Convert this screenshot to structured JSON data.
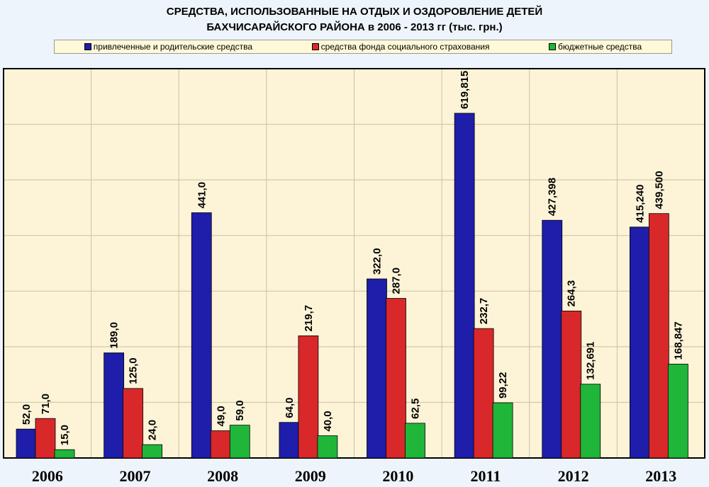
{
  "title_line1": "СРЕДСТВА, ИСПОЛЬЗОВАННЫЕ НА ОТДЫХ И ОЗДОРОВЛЕНИЕ ДЕТЕЙ",
  "title_line2": "БАХЧИСАРАЙСКОГО РАЙОНА в 2006 - 2013 гг (тыс. грн.)",
  "colors": {
    "blue": "#1e1eaa",
    "red": "#d8282a",
    "green": "#1fb63a",
    "plot_bg": "#fdf4d8",
    "grid": "#c9bfa5"
  },
  "chart_data": {
    "type": "bar",
    "categories": [
      "2006",
      "2007",
      "2008",
      "2009",
      "2010",
      "2011",
      "2012",
      "2013"
    ],
    "ylim": [
      0,
      700
    ],
    "grid": true,
    "legend_position": "top",
    "series": [
      {
        "name": "привлеченные и родительские средства",
        "color": "#1e1eaa",
        "values": [
          52.0,
          189.0,
          441.0,
          64.0,
          322.0,
          619.815,
          427.398,
          415.24
        ],
        "labels": [
          "52,0",
          "189,0",
          "441,0",
          "64,0",
          "322,0",
          "619,815",
          "427,398",
          "415,240"
        ]
      },
      {
        "name": "средства фонда социального страхования",
        "color": "#d8282a",
        "values": [
          71.0,
          125.0,
          49.0,
          219.7,
          287.0,
          232.7,
          264.3,
          439.5
        ],
        "labels": [
          "71,0",
          "125,0",
          "49,0",
          "219,7",
          "287,0",
          "232,7",
          "264,3",
          "439,500"
        ]
      },
      {
        "name": "бюджетные средства",
        "color": "#1fb63a",
        "values": [
          15.0,
          24.0,
          59.0,
          40.0,
          62.5,
          99.22,
          132.691,
          168.847
        ],
        "labels": [
          "15,0",
          "24,0",
          "59,0",
          "40,0",
          "62,5",
          "99,22",
          "132,691",
          "168,847"
        ]
      }
    ]
  }
}
